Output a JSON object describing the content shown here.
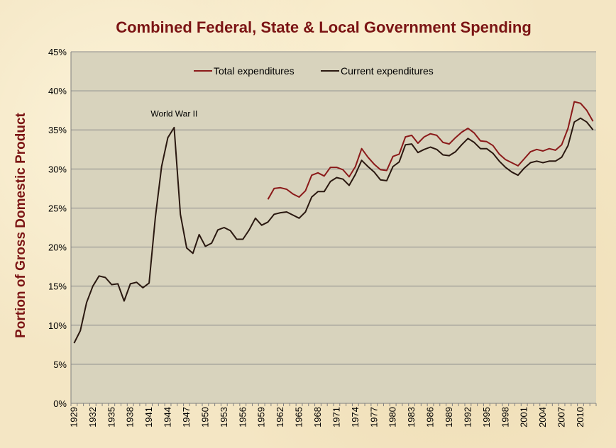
{
  "chart_data": {
    "type": "line",
    "title": "Combined Federal, State & Local Government Spending",
    "xlabel": "",
    "ylabel": "Portion of Gross Domestic Product",
    "ylim": [
      0,
      45
    ],
    "yticks": [
      "0%",
      "5%",
      "10%",
      "15%",
      "20%",
      "25%",
      "30%",
      "35%",
      "40%",
      "45%"
    ],
    "xlim": [
      1929,
      2012
    ],
    "xticks": [
      "1929",
      "1932",
      "1935",
      "1938",
      "1941",
      "1944",
      "1947",
      "1950",
      "1953",
      "1956",
      "1959",
      "1962",
      "1965",
      "1968",
      "1971",
      "1974",
      "1977",
      "1980",
      "1983",
      "1986",
      "1989",
      "1992",
      "1995",
      "1998",
      "2001",
      "2004",
      "2007",
      "2010"
    ],
    "grid": true,
    "legend_position": "top",
    "colors": {
      "total": "#8b1a1a",
      "current": "#2a1810",
      "title": "#7b1414",
      "plot_bg": "#d8d3bd",
      "gridline": "#8a8a8a"
    },
    "annotations": [
      {
        "text": "World War II",
        "x": 1945,
        "y": 36.7
      }
    ],
    "series": [
      {
        "name": "Total expenditures",
        "x": [
          1960,
          1961,
          1962,
          1963,
          1964,
          1965,
          1966,
          1967,
          1968,
          1969,
          1970,
          1971,
          1972,
          1973,
          1974,
          1975,
          1976,
          1977,
          1978,
          1979,
          1980,
          1981,
          1982,
          1983,
          1984,
          1985,
          1986,
          1987,
          1988,
          1989,
          1990,
          1991,
          1992,
          1993,
          1994,
          1995,
          1996,
          1997,
          1998,
          1999,
          2000,
          2001,
          2002,
          2003,
          2004,
          2005,
          2006,
          2007,
          2008,
          2009,
          2010,
          2011,
          2012
        ],
        "values": [
          26.1,
          27.5,
          27.6,
          27.4,
          26.8,
          26.4,
          27.2,
          29.2,
          29.5,
          29.1,
          30.2,
          30.2,
          29.9,
          29.0,
          30.3,
          32.6,
          31.5,
          30.6,
          29.9,
          29.8,
          31.6,
          31.9,
          34.1,
          34.3,
          33.3,
          34.1,
          34.5,
          34.3,
          33.4,
          33.2,
          34.0,
          34.7,
          35.2,
          34.6,
          33.6,
          33.5,
          33.0,
          31.9,
          31.2,
          30.8,
          30.4,
          31.3,
          32.2,
          32.5,
          32.3,
          32.6,
          32.4,
          33.1,
          35.2,
          38.6,
          38.4,
          37.5,
          36.1
        ]
      },
      {
        "name": "Current expenditures",
        "x": [
          1929,
          1930,
          1931,
          1932,
          1933,
          1934,
          1935,
          1936,
          1937,
          1938,
          1939,
          1940,
          1941,
          1942,
          1943,
          1944,
          1945,
          1946,
          1947,
          1948,
          1949,
          1950,
          1951,
          1952,
          1953,
          1954,
          1955,
          1956,
          1957,
          1958,
          1959,
          1960,
          1961,
          1962,
          1963,
          1964,
          1965,
          1966,
          1967,
          1968,
          1969,
          1970,
          1971,
          1972,
          1973,
          1974,
          1975,
          1976,
          1977,
          1978,
          1979,
          1980,
          1981,
          1982,
          1983,
          1984,
          1985,
          1986,
          1987,
          1988,
          1989,
          1990,
          1991,
          1992,
          1993,
          1994,
          1995,
          1996,
          1997,
          1998,
          1999,
          2000,
          2001,
          2002,
          2003,
          2004,
          2005,
          2006,
          2007,
          2008,
          2009,
          2010,
          2011,
          2012
        ],
        "values": [
          7.7,
          9.3,
          12.9,
          15.0,
          16.3,
          16.1,
          15.2,
          15.3,
          13.1,
          15.3,
          15.5,
          14.8,
          15.4,
          23.8,
          30.3,
          34.0,
          35.3,
          24.2,
          19.9,
          19.2,
          21.6,
          20.1,
          20.5,
          22.2,
          22.5,
          22.1,
          21.0,
          21.0,
          22.2,
          23.7,
          22.8,
          23.2,
          24.2,
          24.4,
          24.5,
          24.1,
          23.7,
          24.5,
          26.4,
          27.1,
          27.1,
          28.4,
          28.9,
          28.7,
          27.9,
          29.3,
          31.1,
          30.3,
          29.6,
          28.6,
          28.5,
          30.3,
          30.9,
          33.1,
          33.2,
          32.1,
          32.5,
          32.8,
          32.5,
          31.8,
          31.7,
          32.2,
          33.1,
          33.9,
          33.4,
          32.6,
          32.6,
          32.0,
          31.0,
          30.2,
          29.6,
          29.2,
          30.1,
          30.8,
          31.0,
          30.8,
          31.0,
          31.0,
          31.5,
          33.0,
          36.0,
          36.5,
          36.0,
          35.0
        ]
      }
    ]
  }
}
